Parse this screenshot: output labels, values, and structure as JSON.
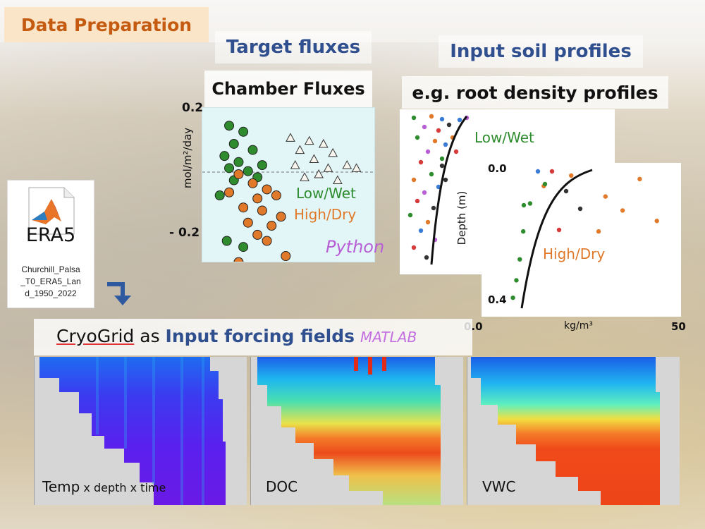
{
  "slide_title": "Data Preparation",
  "headers": {
    "target_fluxes": "Target fluxes",
    "input_soil_profiles": "Input soil profiles",
    "root_density": "e.g. root density profiles"
  },
  "era5": {
    "name": "ERA5",
    "file_lines": [
      "Churchill_Palsa",
      "_T0_ERA5_Lan",
      "d_1950_2022"
    ]
  },
  "flux_chart": {
    "title": "Chamber Fluxes",
    "ylabel": "mol/m²/day",
    "yticks": [
      "0.2",
      "- 0.2"
    ],
    "legend": [
      "Low/Wet",
      "High/Dry"
    ],
    "tool": "Python"
  },
  "root_chart_back": {
    "label": "Low/Wet",
    "ylabel": "Depth (m)"
  },
  "root_chart_front": {
    "label": "High/Dry",
    "y_top": "0.0",
    "y_bottom": "0.4",
    "x_left": "0.0",
    "x_right": "50",
    "xlabel": "kg/m³"
  },
  "forcing": {
    "prefix": "CryoGrid",
    "as": " as ",
    "title": "Input forcing fields",
    "tool": "MATLAB",
    "fields": [
      {
        "label_main": "Temp",
        "label_sub": " x depth x time"
      },
      {
        "label_main": "DOC",
        "label_sub": ""
      },
      {
        "label_main": "VWC",
        "label_sub": ""
      }
    ]
  },
  "colors": {
    "accent_orange": "#c55a11",
    "header_blue": "#2f4f8f",
    "low_wet": "#2e8b2e",
    "high_dry": "#e07a2a",
    "python": "#b85fd6",
    "matlab": "#c26ee0"
  },
  "icons": [
    "matlab-file-icon",
    "down-arrow-icon"
  ],
  "chart_data": [
    {
      "type": "scatter",
      "title": "Chamber Fluxes",
      "ylabel": "mol/m²/day",
      "ylim": [
        -0.25,
        0.22
      ],
      "legend_position": "right",
      "series": [
        {
          "name": "Low/Wet",
          "color": "#2e8b2e",
          "points": [
            [
              0.3,
              0.18
            ],
            [
              0.6,
              0.16
            ],
            [
              0.4,
              0.12
            ],
            [
              0.8,
              0.1
            ],
            [
              0.2,
              0.08
            ],
            [
              0.5,
              0.06
            ],
            [
              1.0,
              0.05
            ],
            [
              0.3,
              0.04
            ],
            [
              0.7,
              0.03
            ],
            [
              0.9,
              0.01
            ],
            [
              0.4,
              0.0
            ],
            [
              0.1,
              -0.05
            ],
            [
              0.25,
              -0.2
            ],
            [
              0.6,
              -0.22
            ]
          ]
        },
        {
          "name": "High/Dry",
          "color": "#e07a2a",
          "points": [
            [
              0.5,
              0.02
            ],
            [
              0.8,
              -0.01
            ],
            [
              1.1,
              -0.03
            ],
            [
              0.3,
              -0.04
            ],
            [
              0.9,
              -0.06
            ],
            [
              1.3,
              -0.05
            ],
            [
              0.6,
              -0.09
            ],
            [
              1.0,
              -0.1
            ],
            [
              1.4,
              -0.12
            ],
            [
              0.7,
              -0.14
            ],
            [
              1.2,
              -0.15
            ],
            [
              0.9,
              -0.18
            ],
            [
              1.1,
              -0.2
            ],
            [
              1.5,
              -0.25
            ],
            [
              0.5,
              -0.27
            ]
          ]
        },
        {
          "name": "",
          "color": "#ffffff",
          "points": [
            [
              1.6,
              0.14
            ],
            [
              2.0,
              0.13
            ],
            [
              2.3,
              0.12
            ],
            [
              1.8,
              0.1
            ],
            [
              2.5,
              0.09
            ],
            [
              2.1,
              0.07
            ],
            [
              1.7,
              0.05
            ],
            [
              2.4,
              0.04
            ],
            [
              2.8,
              0.05
            ],
            [
              2.2,
              0.02
            ],
            [
              1.9,
              0.01
            ],
            [
              2.6,
              0.0
            ],
            [
              3.0,
              0.04
            ]
          ]
        }
      ]
    },
    {
      "type": "scatter",
      "title": "",
      "xlabel": "kg/m³",
      "ylabel": "Depth (m)",
      "xlim": [
        0,
        50
      ],
      "ylim": [
        0.4,
        0.0
      ],
      "series": [
        {
          "name": "High/Dry",
          "color": "#e07a2a",
          "points": [
            [
              12,
              0.05
            ],
            [
              20,
              0.02
            ],
            [
              30,
              0.08
            ],
            [
              35,
              0.12
            ],
            [
              40,
              0.03
            ],
            [
              45,
              0.15
            ],
            [
              28,
              0.18
            ]
          ]
        },
        {
          "name": "Low/Wet",
          "color": "#2e8b2e",
          "points": [
            [
              8,
              0.1
            ],
            [
              6,
              0.18
            ],
            [
              5,
              0.26
            ],
            [
              4,
              0.32
            ],
            [
              3,
              0.37
            ]
          ]
        }
      ]
    }
  ]
}
